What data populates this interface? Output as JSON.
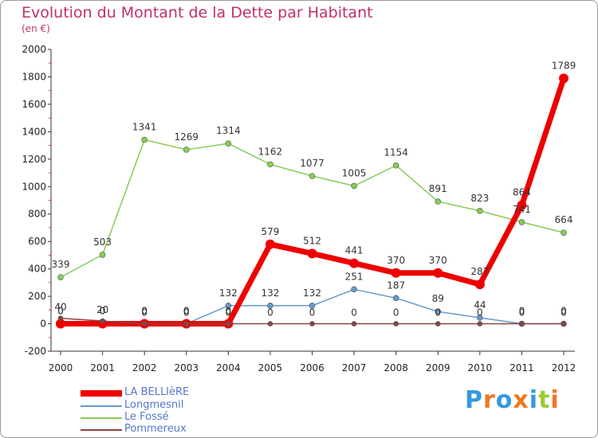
{
  "title": "Evolution du Montant de la Dette par Habitant",
  "subtitle": "(en €)",
  "logo": "Proxiti",
  "chart_data": {
    "type": "line",
    "x": [
      "2000",
      "2001",
      "2002",
      "2003",
      "2004",
      "2005",
      "2006",
      "2007",
      "2008",
      "2009",
      "2010",
      "2011",
      "2012"
    ],
    "ylim": [
      -200,
      2000
    ],
    "yticks": [
      -200,
      0,
      200,
      400,
      600,
      800,
      1000,
      1200,
      1400,
      1600,
      1800,
      2000
    ],
    "grid": false,
    "legend_position": "bottom-left",
    "series": [
      {
        "name": "LA BELLIèRE",
        "color": "#ee0000",
        "values": [
          0,
          0,
          0,
          0,
          0,
          579,
          512,
          441,
          370,
          370,
          287,
          864,
          1789
        ],
        "labels": [
          "0",
          "0",
          "0",
          "0",
          "0",
          "579",
          "512",
          "441",
          "370",
          "370",
          "287",
          "864",
          "1789"
        ]
      },
      {
        "name": "Longmesnil",
        "color": "#6699cc",
        "values": [
          0,
          0,
          0,
          0,
          132,
          132,
          132,
          251,
          187,
          89,
          44,
          0,
          0
        ],
        "labels": [
          "0",
          "0",
          "0",
          "0",
          "132",
          "132",
          "132",
          "251",
          "187",
          "89",
          "44",
          "0",
          "0"
        ]
      },
      {
        "name": "Le Fossé",
        "color": "#88cc55",
        "values": [
          339,
          503,
          1341,
          1269,
          1314,
          1162,
          1077,
          1005,
          1154,
          891,
          823,
          741,
          664
        ],
        "labels": [
          "339",
          "503",
          "1341",
          "1269",
          "1314",
          "1162",
          "1077",
          "1005",
          "1154",
          "891",
          "823",
          "741",
          "664"
        ]
      },
      {
        "name": "Pommereux",
        "color": "#884444",
        "values": [
          40,
          20,
          0,
          0,
          0,
          0,
          0,
          0,
          0,
          0,
          0,
          0,
          0
        ],
        "labels": [
          "40",
          "20",
          "0",
          "0",
          "0",
          "0",
          "0",
          "0",
          "0",
          "0",
          "0",
          "0",
          "0"
        ]
      }
    ]
  }
}
